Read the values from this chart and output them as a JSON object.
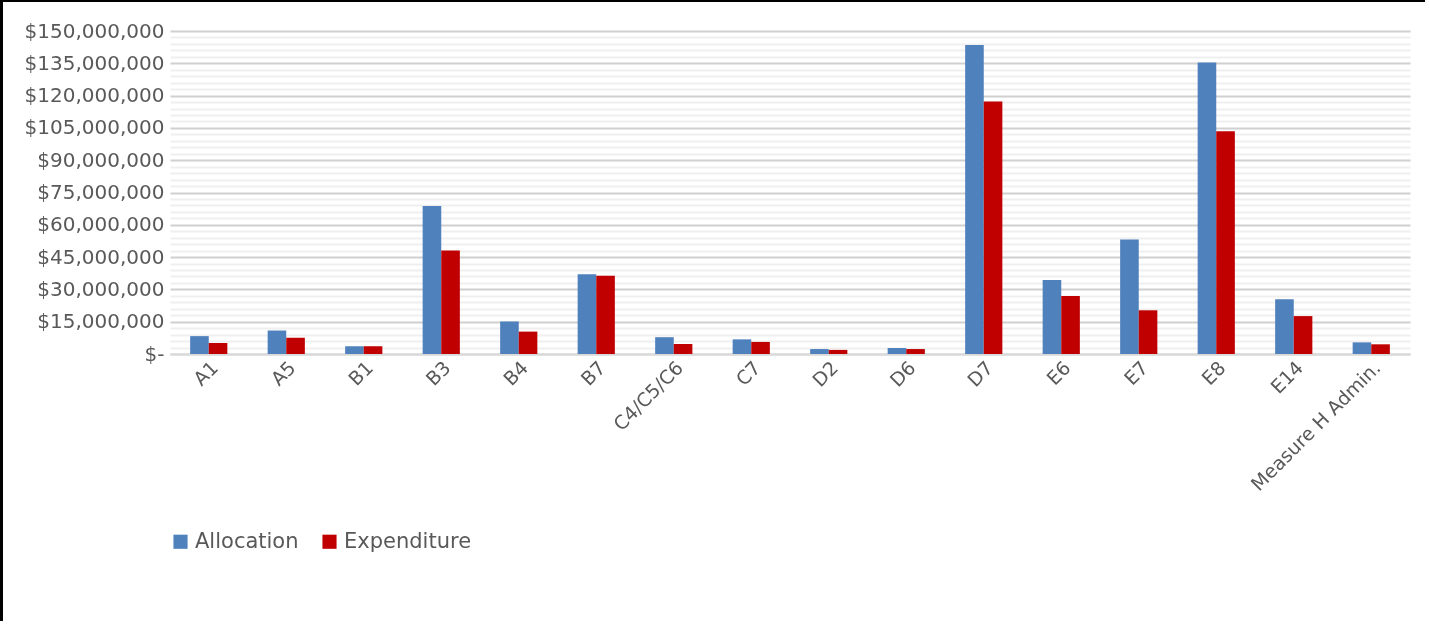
{
  "chart_data": {
    "type": "bar",
    "categories": [
      "A1",
      "A5",
      "B1",
      "B3",
      "B4",
      "B7",
      "C4/C5/C6",
      "C7",
      "D2",
      "D6",
      "D7",
      "E6",
      "E7",
      "E8",
      "E14",
      "Measure H Admin."
    ],
    "series": [
      {
        "name": "Allocation",
        "color": "#4f81bd",
        "values": [
          8300000,
          10900000,
          3600000,
          68700000,
          15100000,
          37000000,
          7800000,
          6800000,
          2300000,
          2800000,
          143500000,
          34400000,
          53200000,
          135400000,
          25400000,
          5400000
        ]
      },
      {
        "name": "Expenditure",
        "color": "#c00000",
        "values": [
          5100000,
          7600000,
          3600000,
          48100000,
          10400000,
          36300000,
          4700000,
          5600000,
          1900000,
          2300000,
          117300000,
          26900000,
          20300000,
          103400000,
          17600000,
          4500000
        ]
      }
    ],
    "ylim": [
      0,
      150000000
    ],
    "yticks": [
      {
        "value": 0,
        "label": "$-"
      },
      {
        "value": 3000000,
        "label": null
      },
      {
        "value": 6000000,
        "label": null
      },
      {
        "value": 9000000,
        "label": null
      },
      {
        "value": 12000000,
        "label": null
      },
      {
        "value": 15000000,
        "label": "$15,000,000"
      },
      {
        "value": 18000000,
        "label": null
      },
      {
        "value": 21000000,
        "label": null
      },
      {
        "value": 24000000,
        "label": null
      },
      {
        "value": 27000000,
        "label": null
      },
      {
        "value": 30000000,
        "label": "$30,000,000"
      },
      {
        "value": 33000000,
        "label": null
      },
      {
        "value": 36000000,
        "label": null
      },
      {
        "value": 39000000,
        "label": null
      },
      {
        "value": 42000000,
        "label": null
      },
      {
        "value": 45000000,
        "label": "$45,000,000"
      },
      {
        "value": 48000000,
        "label": null
      },
      {
        "value": 51000000,
        "label": null
      },
      {
        "value": 54000000,
        "label": null
      },
      {
        "value": 57000000,
        "label": null
      },
      {
        "value": 60000000,
        "label": "$60,000,000"
      },
      {
        "value": 63000000,
        "label": null
      },
      {
        "value": 66000000,
        "label": null
      },
      {
        "value": 69000000,
        "label": null
      },
      {
        "value": 72000000,
        "label": null
      },
      {
        "value": 75000000,
        "label": "$75,000,000"
      },
      {
        "value": 78000000,
        "label": null
      },
      {
        "value": 81000000,
        "label": null
      },
      {
        "value": 84000000,
        "label": null
      },
      {
        "value": 87000000,
        "label": null
      },
      {
        "value": 90000000,
        "label": "$90,000,000"
      },
      {
        "value": 93000000,
        "label": null
      },
      {
        "value": 96000000,
        "label": null
      },
      {
        "value": 99000000,
        "label": null
      },
      {
        "value": 102000000,
        "label": null
      },
      {
        "value": 105000000,
        "label": "$105,000,000"
      },
      {
        "value": 108000000,
        "label": null
      },
      {
        "value": 111000000,
        "label": null
      },
      {
        "value": 114000000,
        "label": null
      },
      {
        "value": 117000000,
        "label": null
      },
      {
        "value": 120000000,
        "label": "$120,000,000"
      },
      {
        "value": 123000000,
        "label": null
      },
      {
        "value": 126000000,
        "label": null
      },
      {
        "value": 129000000,
        "label": null
      },
      {
        "value": 132000000,
        "label": null
      },
      {
        "value": 135000000,
        "label": "$135,000,000"
      },
      {
        "value": 138000000,
        "label": null
      },
      {
        "value": 141000000,
        "label": null
      },
      {
        "value": 144000000,
        "label": null
      },
      {
        "value": 147000000,
        "label": null
      },
      {
        "value": 150000000,
        "label": "$150,000,000"
      }
    ],
    "grid": "y",
    "legend": "bottom"
  }
}
